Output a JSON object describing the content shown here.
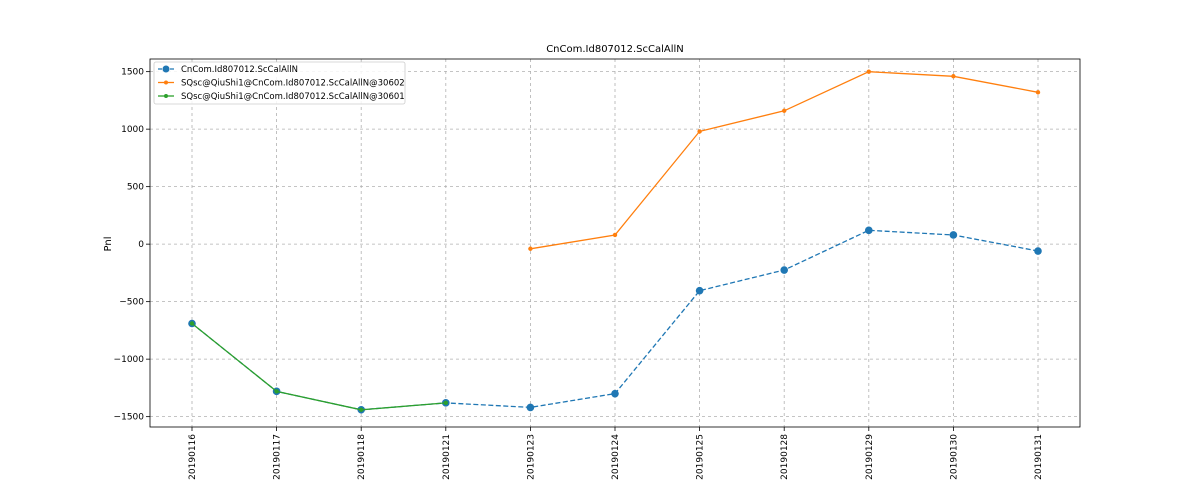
{
  "chart_data": {
    "type": "line",
    "title": "CnCom.Id807012.ScCalAllN",
    "xlabel": "",
    "ylabel": "Pnl",
    "categories": [
      "20190116",
      "20190117",
      "20190118",
      "20190121",
      "20190123",
      "20190124",
      "20190125",
      "20190128",
      "20190129",
      "20190130",
      "20190131"
    ],
    "ylim": [
      -1590,
      1610
    ],
    "yticks": [
      -1500,
      -1000,
      -500,
      0,
      500,
      1000,
      1500
    ],
    "ytick_labels": [
      "−1500",
      "−1000",
      "−500",
      "0",
      "500",
      "1000",
      "1500"
    ],
    "grid": true,
    "legend_position": "top-left",
    "series": [
      {
        "name": "CnCom.Id807012.ScCalAllN",
        "color": "#1f77b4",
        "style": "dashed",
        "marker": "large-circle",
        "values": [
          -690,
          -1280,
          -1440,
          -1380,
          -1420,
          -1300,
          -405,
          -225,
          120,
          80,
          -60
        ]
      },
      {
        "name": "SQsc@QiuShi1@CnCom.Id807012.ScCalAllN@30602",
        "color": "#ff7f0e",
        "style": "solid",
        "marker": "small-circle",
        "values": [
          null,
          null,
          null,
          null,
          -40,
          80,
          980,
          1160,
          1500,
          1460,
          1320
        ]
      },
      {
        "name": "SQsc@QiuShi1@CnCom.Id807012.ScCalAllN@30601",
        "color": "#2ca02c",
        "style": "solid",
        "marker": "small-circle",
        "values": [
          -690,
          -1280,
          -1440,
          -1380,
          null,
          null,
          null,
          null,
          null,
          null,
          null
        ]
      }
    ]
  }
}
